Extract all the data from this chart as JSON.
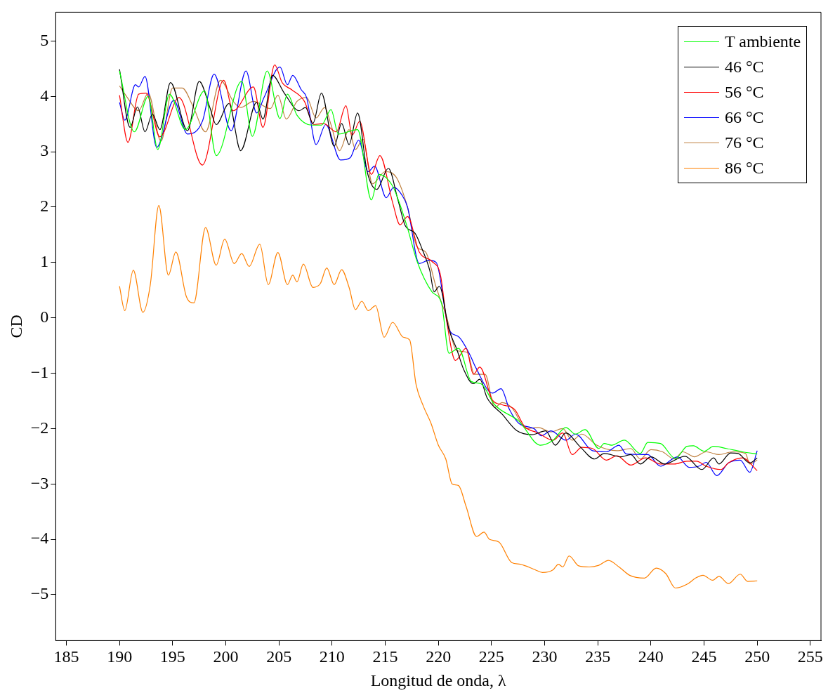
{
  "chart_data": {
    "type": "line",
    "xlabel": "Longitud de onda, λ",
    "ylabel": "CD",
    "xlim": [
      184,
      256
    ],
    "ylim": [
      -5.83,
      5.52
    ],
    "xticks": [
      185,
      190,
      195,
      200,
      205,
      210,
      215,
      220,
      225,
      230,
      235,
      240,
      245,
      250,
      255
    ],
    "yticks": [
      {
        "value": -5,
        "label": "−5"
      },
      {
        "value": -4,
        "label": "−4"
      },
      {
        "value": -3,
        "label": "−3"
      },
      {
        "value": -2,
        "label": "−2"
      },
      {
        "value": -1,
        "label": "−1"
      },
      0,
      1,
      2,
      3,
      4,
      5
    ],
    "grid": false,
    "legend": "top right",
    "marker": "none",
    "line_style": "solid",
    "series": [
      {
        "name": "T ambiente",
        "color": "#00ff00",
        "x": [
          190,
          191.4,
          192.7,
          193.6,
          194.7,
          196.2,
          198,
          199.1,
          201.5,
          202.5,
          203.9,
          205.1,
          205.8,
          206.7,
          208.1,
          209,
          209.9,
          210.6,
          212.4,
          213.7,
          214.4,
          215.7,
          216.4,
          217.1,
          218,
          219.4,
          220.3,
          221,
          221.9,
          223.1,
          224,
          225.3,
          227.6,
          229.6,
          230.8,
          232,
          232.9,
          233.8,
          235.1,
          235.6,
          236.3,
          237.5,
          239,
          239.7,
          240.9,
          242.3,
          243.4,
          244,
          245,
          245.9,
          247.1,
          248.6,
          250
        ],
        "values": [
          4.46,
          3.36,
          4.0,
          3.04,
          4.04,
          3.4,
          4.1,
          2.93,
          4.27,
          3.28,
          4.46,
          3.6,
          4.04,
          3.66,
          3.48,
          3.48,
          3.76,
          3.32,
          3.4,
          2.13,
          2.59,
          2.38,
          2.04,
          1.62,
          1.02,
          0.47,
          0.26,
          -0.64,
          -0.55,
          -1.15,
          -1.19,
          -1.57,
          -1.87,
          -2.3,
          -2.21,
          -1.98,
          -2.1,
          -2.02,
          -2.36,
          -2.27,
          -2.3,
          -2.21,
          -2.45,
          -2.25,
          -2.27,
          -2.54,
          -2.32,
          -2.31,
          -2.41,
          -2.32,
          -2.36,
          -2.42,
          -2.46
        ]
      },
      {
        "name": "46 °C",
        "color": "#000000",
        "x": [
          190,
          191,
          191.7,
          192.4,
          193.1,
          193.8,
          194.8,
          196.4,
          197.5,
          198.5,
          199.1,
          200.3,
          201.4,
          202.9,
          203.5,
          204.4,
          205.5,
          206.9,
          207.5,
          208.2,
          209,
          210.2,
          210.9,
          211.6,
          212.4,
          213.3,
          214.2,
          215.3,
          216.2,
          216.9,
          217.8,
          218.5,
          219.2,
          219.6,
          220.1,
          221,
          221.7,
          222.4,
          223.3,
          223.9,
          224.6,
          226,
          227.4,
          228.8,
          230.1,
          231,
          232,
          233.3,
          234.7,
          235.6,
          237.2,
          238.1,
          239,
          240,
          241.3,
          243.2,
          244.8,
          245.9,
          246.4,
          247.5,
          248.2,
          249.3,
          250
        ],
        "values": [
          4.49,
          3.44,
          3.81,
          3.36,
          3.68,
          3.4,
          4.25,
          3.38,
          4.27,
          3.8,
          3.49,
          3.87,
          3.02,
          3.89,
          3.59,
          4.38,
          4.06,
          3.74,
          3.8,
          3.51,
          4.06,
          3.1,
          3.51,
          3.13,
          3.7,
          2.64,
          2.32,
          2.7,
          2.13,
          1.66,
          1.53,
          1.23,
          0.85,
          0.47,
          0.57,
          -0.21,
          -0.55,
          -0.94,
          -1.19,
          -1.11,
          -1.45,
          -1.74,
          -2.04,
          -2.11,
          -2.04,
          -2.3,
          -2.08,
          -2.32,
          -2.55,
          -2.45,
          -2.51,
          -2.47,
          -2.64,
          -2.51,
          -2.64,
          -2.5,
          -2.74,
          -2.53,
          -2.64,
          -2.44,
          -2.45,
          -2.62,
          -2.53
        ]
      },
      {
        "name": "56 °C",
        "color": "#ff0000",
        "x": [
          190,
          190.8,
          191.8,
          192.5,
          193.8,
          195.6,
          197.8,
          199.8,
          200.7,
          202.6,
          203.5,
          204.6,
          205.3,
          206.2,
          207.4,
          208.3,
          209.2,
          210.4,
          211.3,
          211.9,
          212.6,
          213.7,
          214.5,
          215.7,
          216.4,
          217.1,
          218.2,
          219.4,
          220.2,
          220.8,
          221.6,
          222.6,
          223.3,
          223.9,
          225.1,
          226,
          227.2,
          228.1,
          229.4,
          230.8,
          231.7,
          232.6,
          233.5,
          234.5,
          235.8,
          236.8,
          238.1,
          239.5,
          240.9,
          242.2,
          243.4,
          244.3,
          245.2,
          246.6,
          247.3,
          248.6,
          250
        ],
        "values": [
          4.02,
          3.17,
          4.04,
          4.06,
          3.27,
          3.98,
          2.76,
          4.29,
          3.74,
          4.17,
          3.44,
          4.57,
          4.25,
          4.12,
          3.91,
          3.49,
          3.51,
          3.36,
          3.83,
          3.3,
          3.55,
          2.59,
          2.93,
          2.08,
          1.68,
          1.83,
          1.19,
          1.02,
          0.77,
          -0.08,
          -0.77,
          -0.55,
          -1.02,
          -0.89,
          -1.49,
          -1.57,
          -1.66,
          -1.96,
          -2.08,
          -2.21,
          -2.08,
          -2.47,
          -2.34,
          -2.36,
          -2.57,
          -2.49,
          -2.66,
          -2.53,
          -2.64,
          -2.64,
          -2.59,
          -2.59,
          -2.68,
          -2.74,
          -2.62,
          -2.53,
          -2.76
        ]
      },
      {
        "name": "66 °C",
        "color": "#0000ff",
        "x": [
          190,
          190.5,
          191.5,
          191.8,
          192.4,
          193.5,
          195.1,
          196.4,
          197.8,
          198.9,
          200.5,
          201.9,
          202.9,
          203.6,
          205.1,
          205.8,
          206.3,
          207.1,
          207.6,
          208.5,
          209.4,
          210.8,
          211.7,
          212.5,
          213.4,
          214,
          215.1,
          215.8,
          216.6,
          217.1,
          218.2,
          219.1,
          219.8,
          221,
          221.9,
          223,
          223.5,
          225.1,
          225.9,
          226.7,
          227.6,
          229,
          229.7,
          230.6,
          232,
          232.9,
          234.5,
          235.8,
          237,
          237.7,
          239.7,
          240.9,
          242.5,
          243.6,
          244.5,
          245.2,
          246.2,
          247.3,
          248.4,
          249.3,
          250
        ],
        "values": [
          3.89,
          3.57,
          4.21,
          4.17,
          4.36,
          3.08,
          3.93,
          3.32,
          3.55,
          4.4,
          3.38,
          4.46,
          3.7,
          3.98,
          4.53,
          4.21,
          4.38,
          4.12,
          3.98,
          3.13,
          3.49,
          2.85,
          2.89,
          3.21,
          2.64,
          2.74,
          2.17,
          2.36,
          2.21,
          2.0,
          0.98,
          1.04,
          1.0,
          -0.21,
          -0.34,
          -0.68,
          -0.89,
          -1.36,
          -1.28,
          -1.66,
          -1.91,
          -2.0,
          -2.13,
          -2.04,
          -2.21,
          -2.1,
          -2.4,
          -2.42,
          -2.3,
          -2.46,
          -2.47,
          -2.68,
          -2.51,
          -2.7,
          -2.68,
          -2.61,
          -2.85,
          -2.62,
          -2.57,
          -2.79,
          -2.4
        ]
      },
      {
        "name": "76 °C",
        "color": "#bf8040",
        "x": [
          190,
          190.7,
          191.8,
          192.7,
          193.9,
          195,
          195.9,
          196.9,
          198.1,
          199.5,
          200.7,
          201.4,
          202.6,
          204.2,
          204.9,
          205.7,
          206.7,
          207.6,
          208.5,
          209.3,
          209.9,
          210.7,
          211.6,
          212.2,
          212.9,
          213.8,
          215,
          216,
          217.1,
          218,
          218.8,
          219.8,
          220.8,
          221.7,
          222.7,
          223.4,
          224.4,
          225.3,
          226,
          226.9,
          228.3,
          229.4,
          230.6,
          231.7,
          232.6,
          233.5,
          234.9,
          236.8,
          238.1,
          239,
          240,
          241.1,
          242.2,
          243,
          244.1,
          245.2,
          246.4,
          247.7,
          248.9,
          249.3,
          250
        ],
        "values": [
          4.19,
          3.99,
          3.74,
          4.06,
          3.19,
          4.15,
          4.15,
          3.83,
          3.36,
          4.29,
          3.91,
          3.8,
          3.91,
          3.78,
          4.02,
          3.59,
          3.91,
          3.98,
          3.61,
          3.8,
          3.49,
          3.02,
          3.4,
          3.04,
          3.23,
          2.42,
          2.64,
          2.55,
          2.0,
          1.28,
          1.19,
          0.55,
          0.0,
          -0.59,
          -0.62,
          -1.02,
          -1.02,
          -1.62,
          -1.53,
          -1.62,
          -2.0,
          -1.98,
          -2.06,
          -2.0,
          -2.21,
          -2.1,
          -2.3,
          -2.4,
          -2.36,
          -2.55,
          -2.38,
          -2.42,
          -2.55,
          -2.42,
          -2.51,
          -2.42,
          -2.47,
          -2.42,
          -2.45,
          -2.64,
          -2.57
        ]
      },
      {
        "name": "86 °C",
        "color": "#ff8000",
        "x": [
          190,
          190.5,
          191.3,
          192.2,
          192.9,
          193.7,
          194.6,
          195.3,
          196.3,
          197,
          198.1,
          199.1,
          199.9,
          200.8,
          201.5,
          202.2,
          203.2,
          204,
          204.9,
          205.8,
          206.3,
          206.7,
          207.3,
          208.2,
          208.9,
          209.5,
          210.2,
          210.9,
          211.6,
          212.2,
          212.8,
          213.4,
          214.1,
          214.9,
          215.7,
          216.7,
          217.3,
          217.9,
          218.6,
          219.3,
          220,
          220.7,
          221.3,
          221.9,
          222.6,
          223.6,
          224.3,
          224.8,
          225.7,
          226.9,
          227.7,
          229.1,
          229.8,
          230.8,
          231.3,
          231.7,
          232.3,
          233.2,
          234.2,
          235.1,
          236,
          237,
          238,
          239.4,
          240.5,
          241.4,
          242.3,
          243.5,
          244.2,
          244.9,
          245.8,
          246.4,
          247.3,
          248.4,
          249.1,
          250
        ],
        "values": [
          0.57,
          0.13,
          0.86,
          0.1,
          0.6,
          2.03,
          0.77,
          1.19,
          0.38,
          0.27,
          1.63,
          0.95,
          1.42,
          0.98,
          1.16,
          0.93,
          1.33,
          0.6,
          1.18,
          0.6,
          0.77,
          0.65,
          0.97,
          0.55,
          0.62,
          0.9,
          0.6,
          0.87,
          0.55,
          0.15,
          0.3,
          0.13,
          0.22,
          -0.35,
          -0.08,
          -0.35,
          -0.4,
          -1.2,
          -1.6,
          -1.9,
          -2.3,
          -2.55,
          -3.0,
          -3.03,
          -3.4,
          -3.95,
          -3.87,
          -4.0,
          -4.05,
          -4.42,
          -4.45,
          -4.55,
          -4.6,
          -4.55,
          -4.45,
          -4.5,
          -4.3,
          -4.48,
          -4.5,
          -4.47,
          -4.38,
          -4.5,
          -4.65,
          -4.7,
          -4.52,
          -4.62,
          -4.88,
          -4.8,
          -4.7,
          -4.65,
          -4.74,
          -4.67,
          -4.8,
          -4.63,
          -4.76,
          -4.75
        ]
      }
    ]
  }
}
